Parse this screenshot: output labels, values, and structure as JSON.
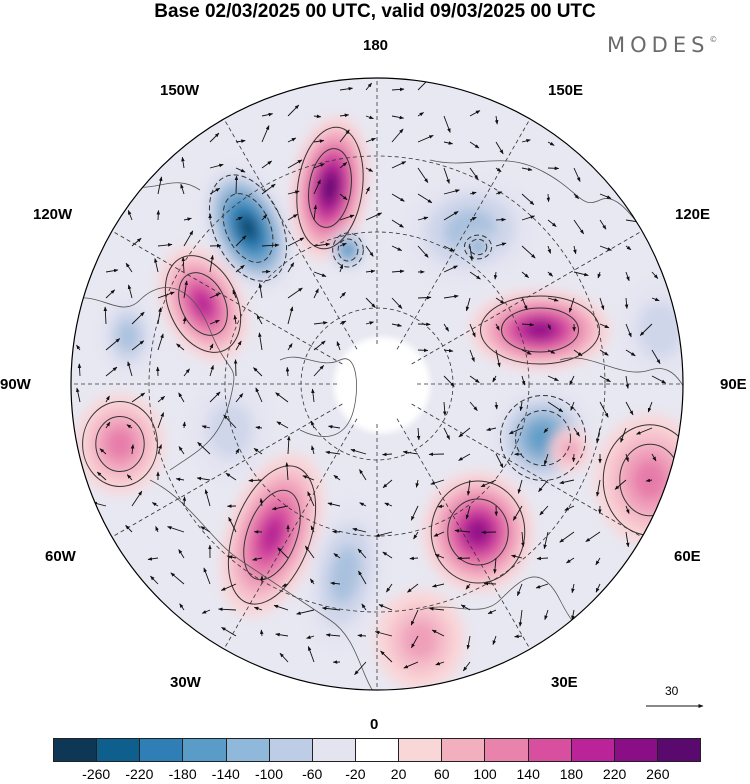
{
  "title": "Base 02/03/2025 00 UTC, valid 09/03/2025 00 UTC",
  "brand": "MODES",
  "brand_mark": "©",
  "longitude_labels": {
    "top": "180",
    "bottom": "0",
    "left": "90W",
    "right": "90E",
    "upper_left": "150W",
    "upper_right": "150E",
    "left_upper": "120W",
    "right_upper": "120E",
    "left_lower": "60W",
    "right_lower": "60E",
    "lower_left": "30W",
    "lower_right": "30E"
  },
  "reference_vector": "30",
  "colorbar": {
    "colors": [
      "#0d3754",
      "#0f5f8e",
      "#2f7fb6",
      "#5a9cc8",
      "#8fb8da",
      "#bdcde5",
      "#e4e4f1",
      "#ffffff",
      "#f9d6d7",
      "#f2afbd",
      "#e983ab",
      "#d84f9f",
      "#bb2498",
      "#8a0f87",
      "#5a0a6e"
    ],
    "ticks": [
      "-260",
      "-220",
      "-180",
      "-140",
      "-100",
      "-60",
      "-20",
      "20",
      "60",
      "100",
      "140",
      "180",
      "220",
      "260"
    ]
  },
  "map_layers": {
    "background_shade": "#e8e8f2",
    "anomalies": [
      {
        "sign": "negative",
        "level": 7
      },
      {
        "sign": "positive",
        "level": 7
      },
      {
        "sign": "negative",
        "level": 2
      },
      {
        "sign": "positive",
        "level": 5
      },
      {
        "sign": "negative",
        "level": 2
      },
      {
        "sign": "positive",
        "level": 6
      },
      {
        "sign": "negative",
        "level": 4
      },
      {
        "sign": "positive",
        "level": 3
      },
      {
        "sign": "negative",
        "level": 4
      },
      {
        "sign": "positive",
        "level": 5
      },
      {
        "sign": "negative",
        "level": 2
      },
      {
        "sign": "positive",
        "level": 6
      },
      {
        "sign": "negative",
        "level": 5
      },
      {
        "sign": "negative",
        "level": 1
      },
      {
        "sign": "positive",
        "level": 2
      },
      {
        "sign": "negative",
        "level": 1
      },
      {
        "sign": "positive",
        "level": 3
      },
      {
        "sign": "positive",
        "level": 2
      }
    ]
  }
}
